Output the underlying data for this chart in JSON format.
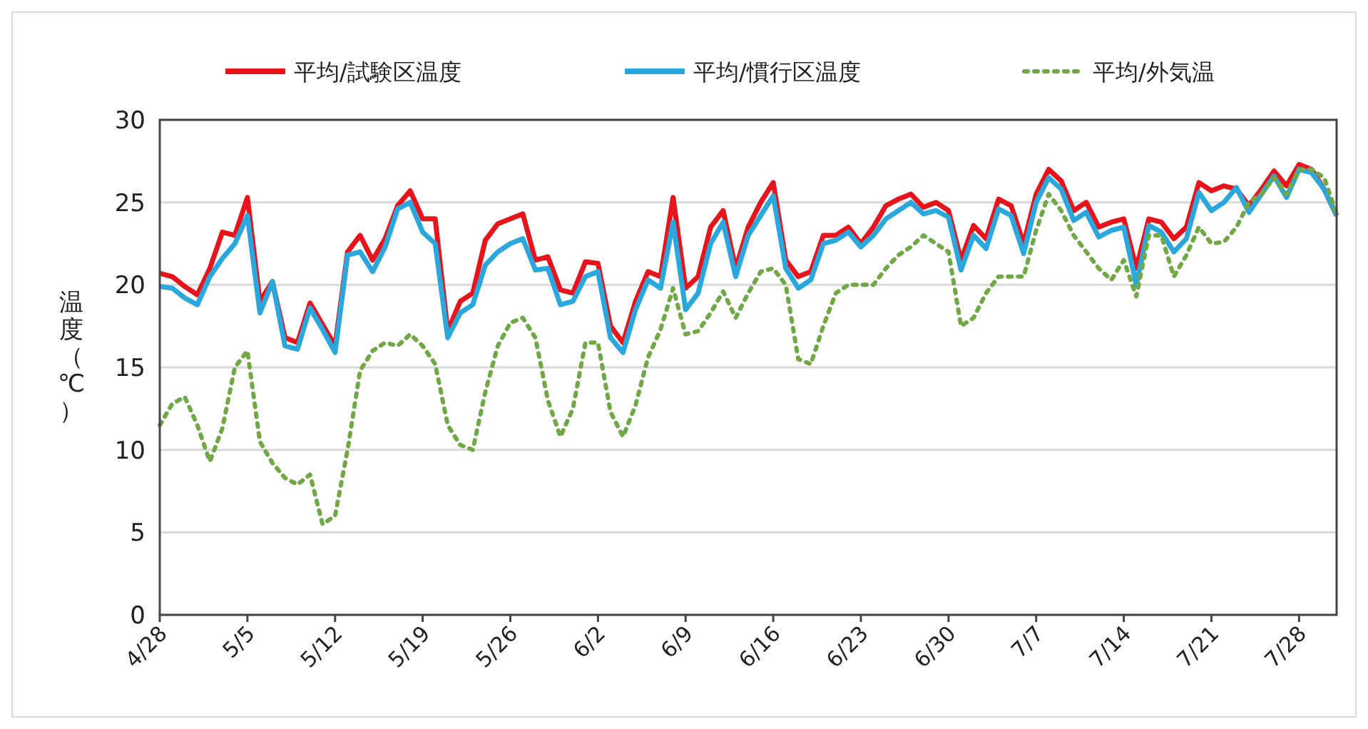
{
  "chart_data": {
    "type": "line",
    "ylabel": "温度（℃）",
    "legend": "top",
    "grid": "y",
    "marker": "none",
    "x": [
      "--04-28",
      "--04-29",
      "--04-30",
      "--05-01",
      "--05-02",
      "--05-03",
      "--05-04",
      "--05-05",
      "--05-06",
      "--05-07",
      "--05-08",
      "--05-09",
      "--05-10",
      "--05-11",
      "--05-12",
      "--05-13",
      "--05-14",
      "--05-15",
      "--05-16",
      "--05-17",
      "--05-18",
      "--05-19",
      "--05-20",
      "--05-21",
      "--05-22",
      "--05-23",
      "--05-24",
      "--05-25",
      "--05-26",
      "--05-27",
      "--05-28",
      "--05-29",
      "--05-30",
      "--05-31",
      "--06-01",
      "--06-02",
      "--06-03",
      "--06-04",
      "--06-05",
      "--06-06",
      "--06-07",
      "--06-08",
      "--06-09",
      "--06-10",
      "--06-11",
      "--06-12",
      "--06-13",
      "--06-14",
      "--06-15",
      "--06-16",
      "--06-17",
      "--06-18",
      "--06-19",
      "--06-20",
      "--06-21",
      "--06-22",
      "--06-23",
      "--06-24",
      "--06-25",
      "--06-26",
      "--06-27",
      "--06-28",
      "--06-29",
      "--06-30",
      "--07-01",
      "--07-02",
      "--07-03",
      "--07-04",
      "--07-05",
      "--07-06",
      "--07-07",
      "--07-08",
      "--07-09",
      "--07-10",
      "--07-11",
      "--07-12",
      "--07-13",
      "--07-14",
      "--07-15",
      "--07-16",
      "--07-17",
      "--07-18",
      "--07-19",
      "--07-20",
      "--07-21",
      "--07-22",
      "--07-23",
      "--07-24",
      "--07-25",
      "--07-26",
      "--07-27",
      "--07-28",
      "--07-29",
      "--07-30",
      "--07-31"
    ],
    "xlim": [
      "--04-28",
      "--07-31"
    ],
    "xticks": [
      {
        "value": "--04-28",
        "label": "4/28"
      },
      {
        "value": "--05-05",
        "label": "5/5"
      },
      {
        "value": "--05-12",
        "label": "5/12"
      },
      {
        "value": "--05-19",
        "label": "5/19"
      },
      {
        "value": "--05-26",
        "label": "5/26"
      },
      {
        "value": "--06-02",
        "label": "6/2"
      },
      {
        "value": "--06-09",
        "label": "6/9"
      },
      {
        "value": "--06-16",
        "label": "6/16"
      },
      {
        "value": "--06-23",
        "label": "6/23"
      },
      {
        "value": "--06-30",
        "label": "6/30"
      },
      {
        "value": "--07-07",
        "label": "7/7"
      },
      {
        "value": "--07-14",
        "label": "7/14"
      },
      {
        "value": "--07-21",
        "label": "7/21"
      },
      {
        "value": "--07-28",
        "label": "7/28"
      }
    ],
    "ylim": [
      0,
      30
    ],
    "yticks": [
      0,
      5,
      10,
      15,
      20,
      25,
      30
    ],
    "series": [
      {
        "name": "平均/試験区温度",
        "color": "#e8141c",
        "line_style": "solid",
        "values": [
          20.7,
          20.5,
          19.9,
          19.4,
          21.0,
          23.2,
          23.0,
          25.3,
          19.0,
          20.2,
          16.8,
          16.5,
          18.9,
          17.6,
          16.3,
          22.0,
          23.0,
          21.5,
          22.8,
          24.8,
          25.7,
          24.0,
          24.0,
          17.2,
          19.0,
          19.5,
          22.7,
          23.7,
          24.0,
          24.3,
          21.5,
          21.7,
          19.7,
          19.5,
          21.4,
          21.3,
          17.5,
          16.5,
          19.0,
          20.8,
          20.5,
          25.3,
          19.8,
          20.5,
          23.5,
          24.5,
          21.0,
          23.5,
          25.0,
          26.2,
          21.5,
          20.5,
          20.8,
          23.0,
          23.0,
          23.5,
          22.5,
          23.5,
          24.8,
          25.2,
          25.5,
          24.7,
          25.0,
          24.5,
          21.5,
          23.6,
          22.8,
          25.2,
          24.8,
          22.5,
          25.5,
          27.0,
          26.3,
          24.5,
          25.0,
          23.5,
          23.8,
          24.0,
          21.0,
          24.0,
          23.8,
          22.8,
          23.5,
          26.2,
          25.7,
          26.0,
          25.8,
          24.8,
          25.8,
          26.9,
          26.0,
          27.3,
          27.0,
          25.8,
          24.2
        ]
      },
      {
        "name": "平均/慣行区温度",
        "color": "#2aa7dc",
        "line_style": "solid",
        "values": [
          19.9,
          19.8,
          19.2,
          18.8,
          20.5,
          21.6,
          22.5,
          24.2,
          18.3,
          20.2,
          16.3,
          16.1,
          18.6,
          17.3,
          15.9,
          21.8,
          22.0,
          20.8,
          22.3,
          24.6,
          25.0,
          23.2,
          22.5,
          16.8,
          18.3,
          18.8,
          21.2,
          22.0,
          22.5,
          22.8,
          20.9,
          21.0,
          18.8,
          19.0,
          20.5,
          20.8,
          16.8,
          15.9,
          18.5,
          20.3,
          19.8,
          23.8,
          18.5,
          19.5,
          22.5,
          23.8,
          20.5,
          23.0,
          24.2,
          25.4,
          21.0,
          19.8,
          20.3,
          22.5,
          22.7,
          23.2,
          22.3,
          23.0,
          24.0,
          24.5,
          25.0,
          24.3,
          24.5,
          24.1,
          20.9,
          23.0,
          22.2,
          24.6,
          24.2,
          21.9,
          25.0,
          26.5,
          25.8,
          23.9,
          24.4,
          22.9,
          23.3,
          23.5,
          20.0,
          23.6,
          23.2,
          22.0,
          22.8,
          25.6,
          24.5,
          25.0,
          25.9,
          24.4,
          25.5,
          26.6,
          25.3,
          27.0,
          26.8,
          25.8,
          24.2
        ]
      },
      {
        "name": "平均/外気温",
        "color": "#70a845",
        "line_style": "dotted",
        "values": [
          11.5,
          12.8,
          13.2,
          11.5,
          9.3,
          11.3,
          15.0,
          16.0,
          10.5,
          9.2,
          8.3,
          7.9,
          8.5,
          5.5,
          6.0,
          10.0,
          14.8,
          16.0,
          16.5,
          16.3,
          17.0,
          16.3,
          15.2,
          11.5,
          10.3,
          10.0,
          13.5,
          16.3,
          17.7,
          18.0,
          16.8,
          13.0,
          10.8,
          12.5,
          16.5,
          16.5,
          12.3,
          10.8,
          12.7,
          15.6,
          17.3,
          19.8,
          17.0,
          17.2,
          18.3,
          19.6,
          18.0,
          19.5,
          20.8,
          21.0,
          20.0,
          15.5,
          15.2,
          17.5,
          19.5,
          20.0,
          20.0,
          20.0,
          21.0,
          21.8,
          22.3,
          23.0,
          22.5,
          22.0,
          17.5,
          18.0,
          19.5,
          20.5,
          20.5,
          20.5,
          23.3,
          25.5,
          24.5,
          23.0,
          22.0,
          21.0,
          20.3,
          21.5,
          19.3,
          23.0,
          23.0,
          20.5,
          21.8,
          23.5,
          22.5,
          22.6,
          23.5,
          25.0,
          25.5,
          26.5,
          25.5,
          27.0,
          27.0,
          26.5,
          24.3
        ]
      }
    ]
  }
}
